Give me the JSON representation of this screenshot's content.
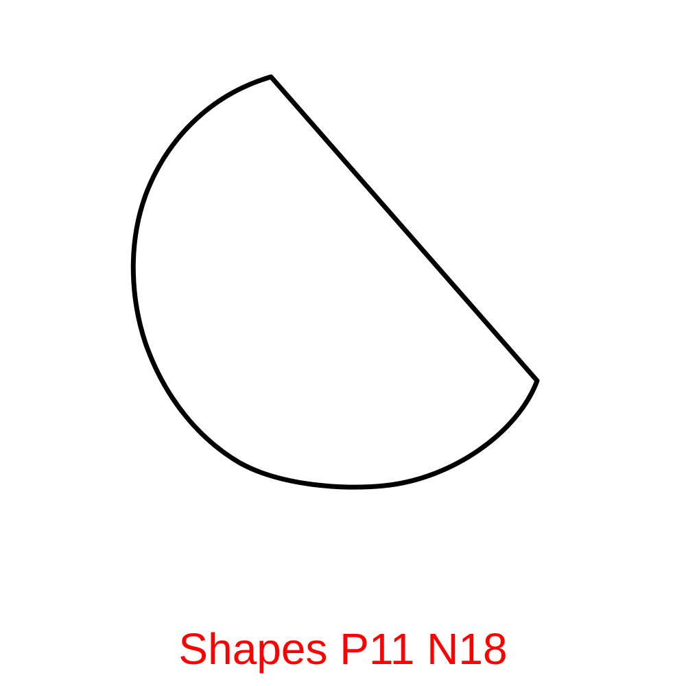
{
  "caption": {
    "text": "Shapes P11 N18",
    "color": "#ff0000"
  },
  "shape": {
    "kind": "circular-segment",
    "stroke_color": "#000000",
    "fill_color": "#ffffff"
  }
}
